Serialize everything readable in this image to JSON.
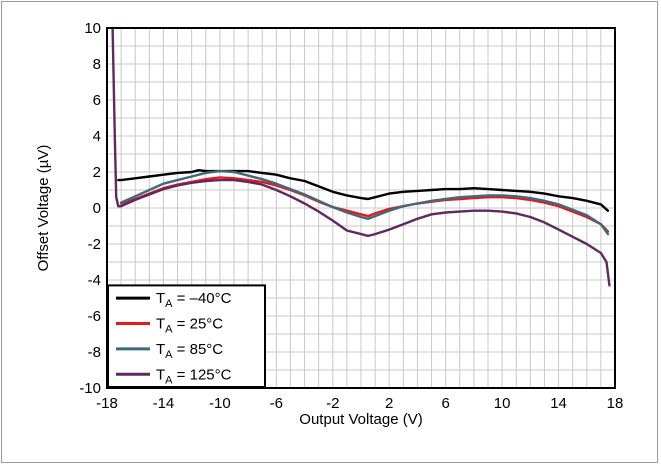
{
  "chart_data": {
    "type": "line",
    "xlabel": "Output Voltage (V)",
    "ylabel": "Offset Voltage (µV)",
    "xlim": [
      -18,
      18
    ],
    "ylim": [
      -10,
      10
    ],
    "x_ticks": [
      "-18",
      "-14",
      "-10",
      "-6",
      "-2",
      "2",
      "6",
      "10",
      "14",
      "18"
    ],
    "y_ticks": [
      "10",
      "8",
      "6",
      "4",
      "2",
      "0",
      "-2",
      "-4",
      "-6",
      "-8",
      "-10"
    ],
    "grid": true,
    "legend_position": "bottom-left",
    "series": [
      {
        "name": "T",
        "subscript": "A",
        "suffix": " = –40°C",
        "color": "#000000",
        "x": [
          -17.2,
          -17.0,
          -16.0,
          -15.0,
          -14.0,
          -13.0,
          -12.0,
          -11.5,
          -11.0,
          -10.0,
          -9.0,
          -8.0,
          -7.0,
          -6.0,
          -5.0,
          -4.0,
          -3.0,
          -2.0,
          -1.0,
          0.0,
          0.5,
          1.0,
          2.0,
          3.0,
          4.0,
          5.0,
          6.0,
          7.0,
          8.0,
          9.0,
          10.0,
          11.0,
          12.0,
          13.0,
          14.0,
          15.0,
          16.0,
          17.0,
          17.5
        ],
        "y": [
          1.55,
          1.55,
          1.65,
          1.75,
          1.85,
          1.95,
          2.0,
          2.1,
          2.05,
          2.05,
          2.05,
          2.05,
          1.95,
          1.85,
          1.65,
          1.5,
          1.2,
          0.9,
          0.7,
          0.55,
          0.5,
          0.6,
          0.8,
          0.9,
          0.95,
          1.0,
          1.05,
          1.05,
          1.1,
          1.05,
          1.0,
          0.95,
          0.9,
          0.8,
          0.65,
          0.55,
          0.4,
          0.2,
          -0.15
        ]
      },
      {
        "name": "T",
        "subscript": "A",
        "suffix": " = 25°C",
        "color": "#e8171c",
        "x": [
          -17.0,
          -16.0,
          -15.0,
          -14.0,
          -13.0,
          -12.0,
          -11.0,
          -10.0,
          -9.0,
          -8.0,
          -7.0,
          -6.0,
          -5.0,
          -4.0,
          -3.0,
          -2.0,
          -1.0,
          0.0,
          0.5,
          1.0,
          2.0,
          3.0,
          4.0,
          5.0,
          6.0,
          7.0,
          8.0,
          9.0,
          10.0,
          11.0,
          12.0,
          13.0,
          14.0,
          15.0,
          16.0,
          17.0,
          17.5
        ],
        "y": [
          0.25,
          0.5,
          0.8,
          1.1,
          1.3,
          1.45,
          1.6,
          1.7,
          1.65,
          1.55,
          1.45,
          1.25,
          1.0,
          0.7,
          0.35,
          0.05,
          -0.15,
          -0.35,
          -0.45,
          -0.3,
          -0.05,
          0.1,
          0.25,
          0.35,
          0.45,
          0.5,
          0.55,
          0.6,
          0.6,
          0.55,
          0.45,
          0.3,
          0.1,
          -0.2,
          -0.5,
          -0.9,
          -1.3
        ]
      },
      {
        "name": "T",
        "subscript": "A",
        "suffix": " = 85°C",
        "color": "#3f6a7a",
        "x": [
          -17.0,
          -16.0,
          -15.0,
          -14.0,
          -13.0,
          -12.0,
          -11.0,
          -10.0,
          -9.0,
          -8.0,
          -7.0,
          -6.0,
          -5.0,
          -4.0,
          -3.0,
          -2.0,
          -1.0,
          0.0,
          0.5,
          1.0,
          2.0,
          3.0,
          4.0,
          5.0,
          6.0,
          7.0,
          8.0,
          9.0,
          10.0,
          11.0,
          12.0,
          13.0,
          14.0,
          15.0,
          16.0,
          17.0,
          17.5
        ],
        "y": [
          0.3,
          0.65,
          1.0,
          1.35,
          1.55,
          1.75,
          1.95,
          2.05,
          2.0,
          1.8,
          1.6,
          1.35,
          1.05,
          0.75,
          0.4,
          0.05,
          -0.25,
          -0.5,
          -0.6,
          -0.45,
          -0.15,
          0.1,
          0.25,
          0.4,
          0.5,
          0.6,
          0.65,
          0.7,
          0.7,
          0.65,
          0.55,
          0.4,
          0.2,
          -0.1,
          -0.4,
          -0.9,
          -1.45
        ]
      },
      {
        "name": "T",
        "subscript": "A",
        "suffix": " = 125°C",
        "color": "#5e2a5e",
        "x": [
          -17.6,
          -17.45,
          -17.35,
          -17.2,
          -17.0,
          -16.0,
          -15.0,
          -14.0,
          -13.0,
          -12.0,
          -11.0,
          -10.0,
          -9.0,
          -8.0,
          -7.0,
          -6.0,
          -5.0,
          -4.0,
          -3.0,
          -2.0,
          -1.0,
          0.0,
          0.5,
          1.0,
          2.0,
          3.0,
          4.0,
          5.0,
          6.0,
          7.0,
          8.0,
          9.0,
          10.0,
          11.0,
          12.0,
          13.0,
          14.0,
          15.0,
          16.0,
          17.0,
          17.4,
          17.6
        ],
        "y": [
          10.0,
          4.0,
          0.6,
          0.1,
          0.1,
          0.45,
          0.75,
          1.05,
          1.25,
          1.4,
          1.5,
          1.55,
          1.55,
          1.45,
          1.3,
          1.0,
          0.65,
          0.25,
          -0.2,
          -0.7,
          -1.25,
          -1.45,
          -1.55,
          -1.45,
          -1.2,
          -0.9,
          -0.6,
          -0.35,
          -0.25,
          -0.2,
          -0.15,
          -0.15,
          -0.2,
          -0.3,
          -0.5,
          -0.8,
          -1.2,
          -1.6,
          -2.0,
          -2.5,
          -3.0,
          -4.3
        ]
      }
    ]
  }
}
